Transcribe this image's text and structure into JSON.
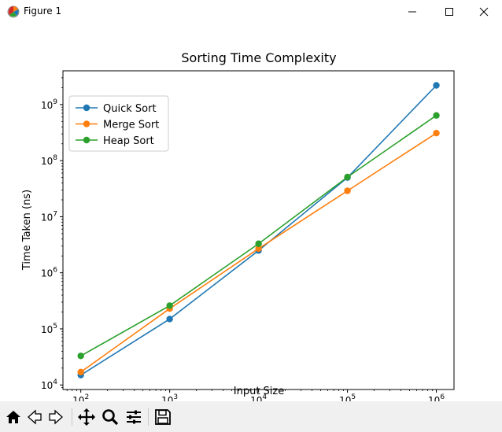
{
  "window": {
    "title": "Figure 1",
    "icons": {
      "app": "matplotlib-icon",
      "minimize": "minimize-icon",
      "maximize": "maximize-icon",
      "close": "close-icon"
    }
  },
  "toolbar": {
    "tools": [
      {
        "name": "home-icon",
        "label": "Home"
      },
      {
        "name": "back-icon",
        "label": "Back"
      },
      {
        "name": "forward-icon",
        "label": "Forward"
      },
      {
        "name": "pan-icon",
        "label": "Pan"
      },
      {
        "name": "zoom-icon",
        "label": "Zoom"
      },
      {
        "name": "subplots-icon",
        "label": "Configure subplots"
      },
      {
        "name": "save-icon",
        "label": "Save"
      }
    ]
  },
  "chart_data": {
    "type": "line",
    "title": "Sorting Time Complexity",
    "xlabel": "Input Size",
    "ylabel": "Time Taken (ns)",
    "xscale": "log",
    "yscale": "log",
    "x": [
      100,
      1000,
      10000,
      100000,
      1000000
    ],
    "x_ticks": [
      {
        "base": "10",
        "exp": "2"
      },
      {
        "base": "10",
        "exp": "3"
      },
      {
        "base": "10",
        "exp": "4"
      },
      {
        "base": "10",
        "exp": "5"
      },
      {
        "base": "10",
        "exp": "6"
      }
    ],
    "y_ticks": [
      {
        "base": "10",
        "exp": "4"
      },
      {
        "base": "10",
        "exp": "5"
      },
      {
        "base": "10",
        "exp": "6"
      },
      {
        "base": "10",
        "exp": "7"
      },
      {
        "base": "10",
        "exp": "8"
      },
      {
        "base": "10",
        "exp": "9"
      }
    ],
    "xlim": [
      63,
      1580000
    ],
    "ylim": [
      8300,
      4000000000
    ],
    "grid": false,
    "legend_position": "upper-left",
    "series": [
      {
        "name": "Quick Sort",
        "color": "#1f77b4",
        "values": [
          15000,
          150000,
          2500000,
          50000000,
          2200000000
        ]
      },
      {
        "name": "Merge Sort",
        "color": "#ff7f0e",
        "values": [
          17000,
          230000,
          2700000,
          29000000,
          310000000
        ]
      },
      {
        "name": "Heap Sort",
        "color": "#2ca02c",
        "values": [
          33000,
          260000,
          3300000,
          51000000,
          640000000
        ]
      }
    ]
  }
}
